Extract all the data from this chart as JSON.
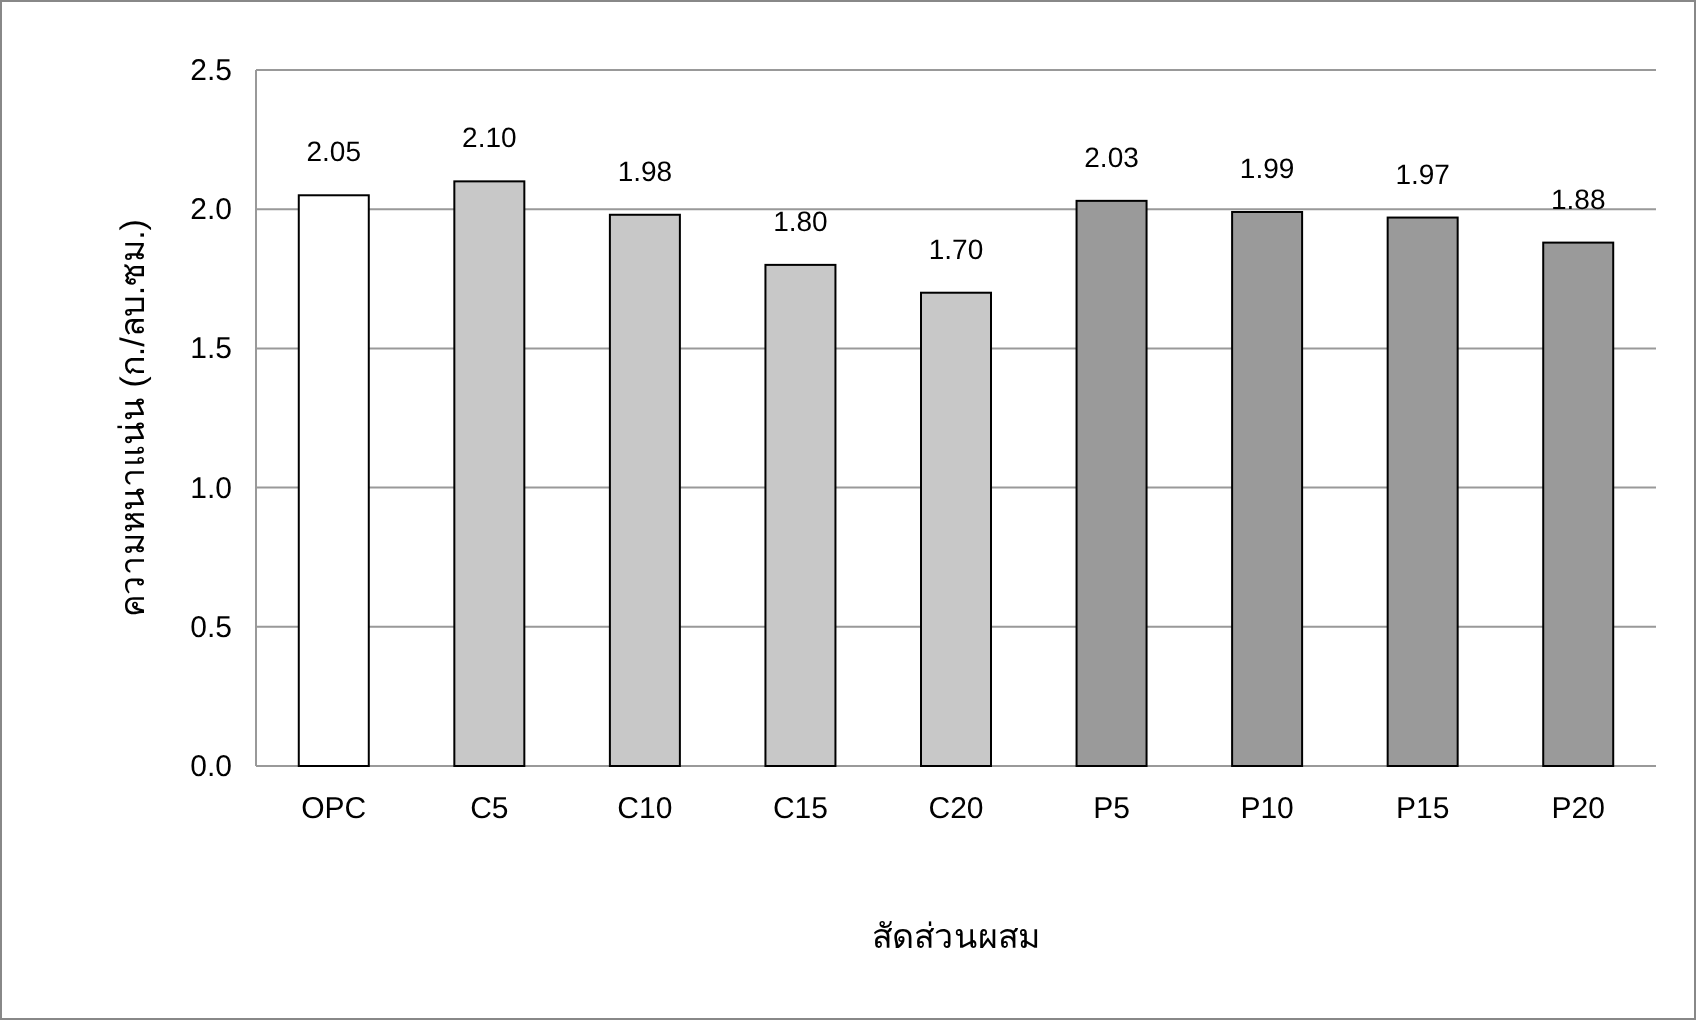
{
  "chart_data": {
    "type": "bar",
    "xlabel": "สัดส่วนผสม",
    "ylabel": "ความหนาแน่น (ก./ลบ.ซม.)",
    "categories": [
      "OPC",
      "C5",
      "C10",
      "C15",
      "C20",
      "P5",
      "P10",
      "P15",
      "P20"
    ],
    "values": [
      2.05,
      2.1,
      1.98,
      1.8,
      1.7,
      2.03,
      1.99,
      1.97,
      1.88
    ],
    "value_labels": [
      "2.05",
      "2.10",
      "1.98",
      "1.80",
      "1.70",
      "2.03",
      "1.99",
      "1.97",
      "1.88"
    ],
    "colors": [
      "#ffffff",
      "#c8c8c8",
      "#c8c8c8",
      "#c8c8c8",
      "#c8c8c8",
      "#9a9a9a",
      "#9a9a9a",
      "#9a9a9a",
      "#9a9a9a"
    ],
    "ylim": [
      0,
      2.5
    ],
    "yticks": [
      {
        "value": 0,
        "label": "0.0"
      },
      {
        "value": 0.5,
        "label": "0.5"
      },
      {
        "value": 1,
        "label": "1.0"
      },
      {
        "value": 1.5,
        "label": "1.5"
      },
      {
        "value": 2,
        "label": "2.0"
      },
      {
        "value": 2.5,
        "label": "2.5"
      }
    ],
    "grid": "y"
  }
}
